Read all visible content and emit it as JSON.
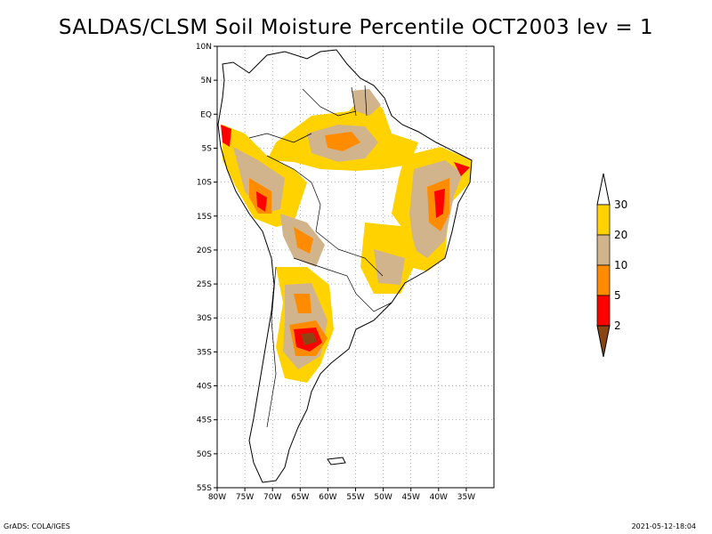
{
  "title": "SALDAS/CLSM Soil Moisture Percentile OCT2003 lev = 1",
  "map": {
    "lon_range": [
      -80,
      -30
    ],
    "lat_range": [
      -55,
      10
    ],
    "lat_ticks": [
      {
        "lat": 10,
        "label": "10N"
      },
      {
        "lat": 5,
        "label": "5N"
      },
      {
        "lat": 0,
        "label": "EQ"
      },
      {
        "lat": -5,
        "label": "5S"
      },
      {
        "lat": -10,
        "label": "10S"
      },
      {
        "lat": -15,
        "label": "15S"
      },
      {
        "lat": -20,
        "label": "20S"
      },
      {
        "lat": -25,
        "label": "25S"
      },
      {
        "lat": -30,
        "label": "30S"
      },
      {
        "lat": -35,
        "label": "35S"
      },
      {
        "lat": -40,
        "label": "40S"
      },
      {
        "lat": -45,
        "label": "45S"
      },
      {
        "lat": -50,
        "label": "50S"
      },
      {
        "lat": -55,
        "label": "55S"
      }
    ],
    "lon_ticks": [
      {
        "lon": -80,
        "label": "80W"
      },
      {
        "lon": -75,
        "label": "75W"
      },
      {
        "lon": -70,
        "label": "70W"
      },
      {
        "lon": -65,
        "label": "65W"
      },
      {
        "lon": -60,
        "label": "60W"
      },
      {
        "lon": -55,
        "label": "55W"
      },
      {
        "lon": -50,
        "label": "50W"
      },
      {
        "lon": -45,
        "label": "45W"
      },
      {
        "lon": -40,
        "label": "40W"
      },
      {
        "lon": -35,
        "label": "35W"
      }
    ],
    "grid": true
  },
  "colorbar": {
    "levels": [
      {
        "label": "30",
        "color": "#ffffff"
      },
      {
        "label": "20",
        "color": "#ffd200"
      },
      {
        "label": "10",
        "color": "#d2b48c"
      },
      {
        "label": "5",
        "color": "#ff8c00"
      },
      {
        "label": "2",
        "color": "#ff0000"
      },
      {
        "label": "",
        "color": "#8b4513"
      }
    ]
  },
  "footer": {
    "left": "GrADS: COLA/IGES",
    "right": "2021-05-12-18:04"
  }
}
